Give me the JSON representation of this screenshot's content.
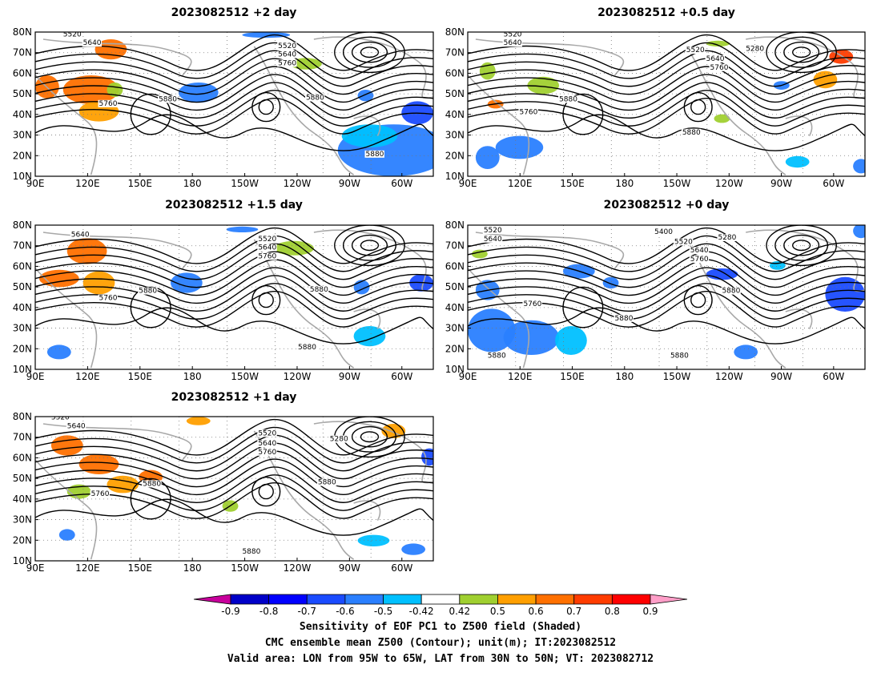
{
  "panels": [
    {
      "id": "p2",
      "title": "2023082512 +2 day"
    },
    {
      "id": "p05",
      "title": "2023082512 +0.5 day"
    },
    {
      "id": "p15",
      "title": "2023082512 +1.5 day"
    },
    {
      "id": "p0",
      "title": "2023082512 +0 day"
    },
    {
      "id": "p1",
      "title": "2023082512 +1 day"
    }
  ],
  "x_ticks": [
    "90E",
    "120E",
    "150E",
    "180",
    "150W",
    "120W",
    "90W",
    "60W"
  ],
  "y_ticks": [
    "80N",
    "70N",
    "60N",
    "50N",
    "40N",
    "30N",
    "20N",
    "10N"
  ],
  "contour_labels": {
    "p2": [
      "5520",
      "5640",
      "5520",
      "5640",
      "5760",
      "5760",
      "5880",
      "5880",
      "5880"
    ],
    "p05": [
      "5520",
      "5640",
      "5520",
      "5640",
      "5760",
      "5280",
      "5880",
      "5760",
      "5880"
    ],
    "p15": [
      "5640",
      "5520",
      "5640",
      "5760",
      "5760",
      "5880",
      "5880",
      "5880"
    ],
    "p0": [
      "5520",
      "5640",
      "5400",
      "5280",
      "5520",
      "5640",
      "5760",
      "5760",
      "5880",
      "5880",
      "5880",
      "5880"
    ],
    "p1": [
      "5520",
      "5640",
      "5520",
      "5640",
      "5760",
      "5280",
      "5880",
      "5760",
      "5880",
      "5880"
    ]
  },
  "colorbar": {
    "labels": [
      "-0.9",
      "-0.8",
      "-0.7",
      "-0.6",
      "-0.5",
      "-0.42",
      "0.42",
      "0.5",
      "0.6",
      "0.7",
      "0.8",
      "0.9"
    ],
    "colors": [
      "#c8009c",
      "#0000c8",
      "#0000ff",
      "#1a4bff",
      "#2a7fff",
      "#00c0ff",
      "#ffffff",
      "#a0d030",
      "#ff9f00",
      "#ff7000",
      "#ff3c00",
      "#ff0000",
      "#ff9ec8"
    ]
  },
  "caption": {
    "line1": "Sensitivity of EOF PC1 to Z500 field (Shaded)",
    "line2": "CMC ensemble mean Z500 (Contour); unit(m); IT:2023082512",
    "line3": "Valid area: LON from 95W to 65W, LAT from 30N to 50N; VT: 2023082712"
  }
}
